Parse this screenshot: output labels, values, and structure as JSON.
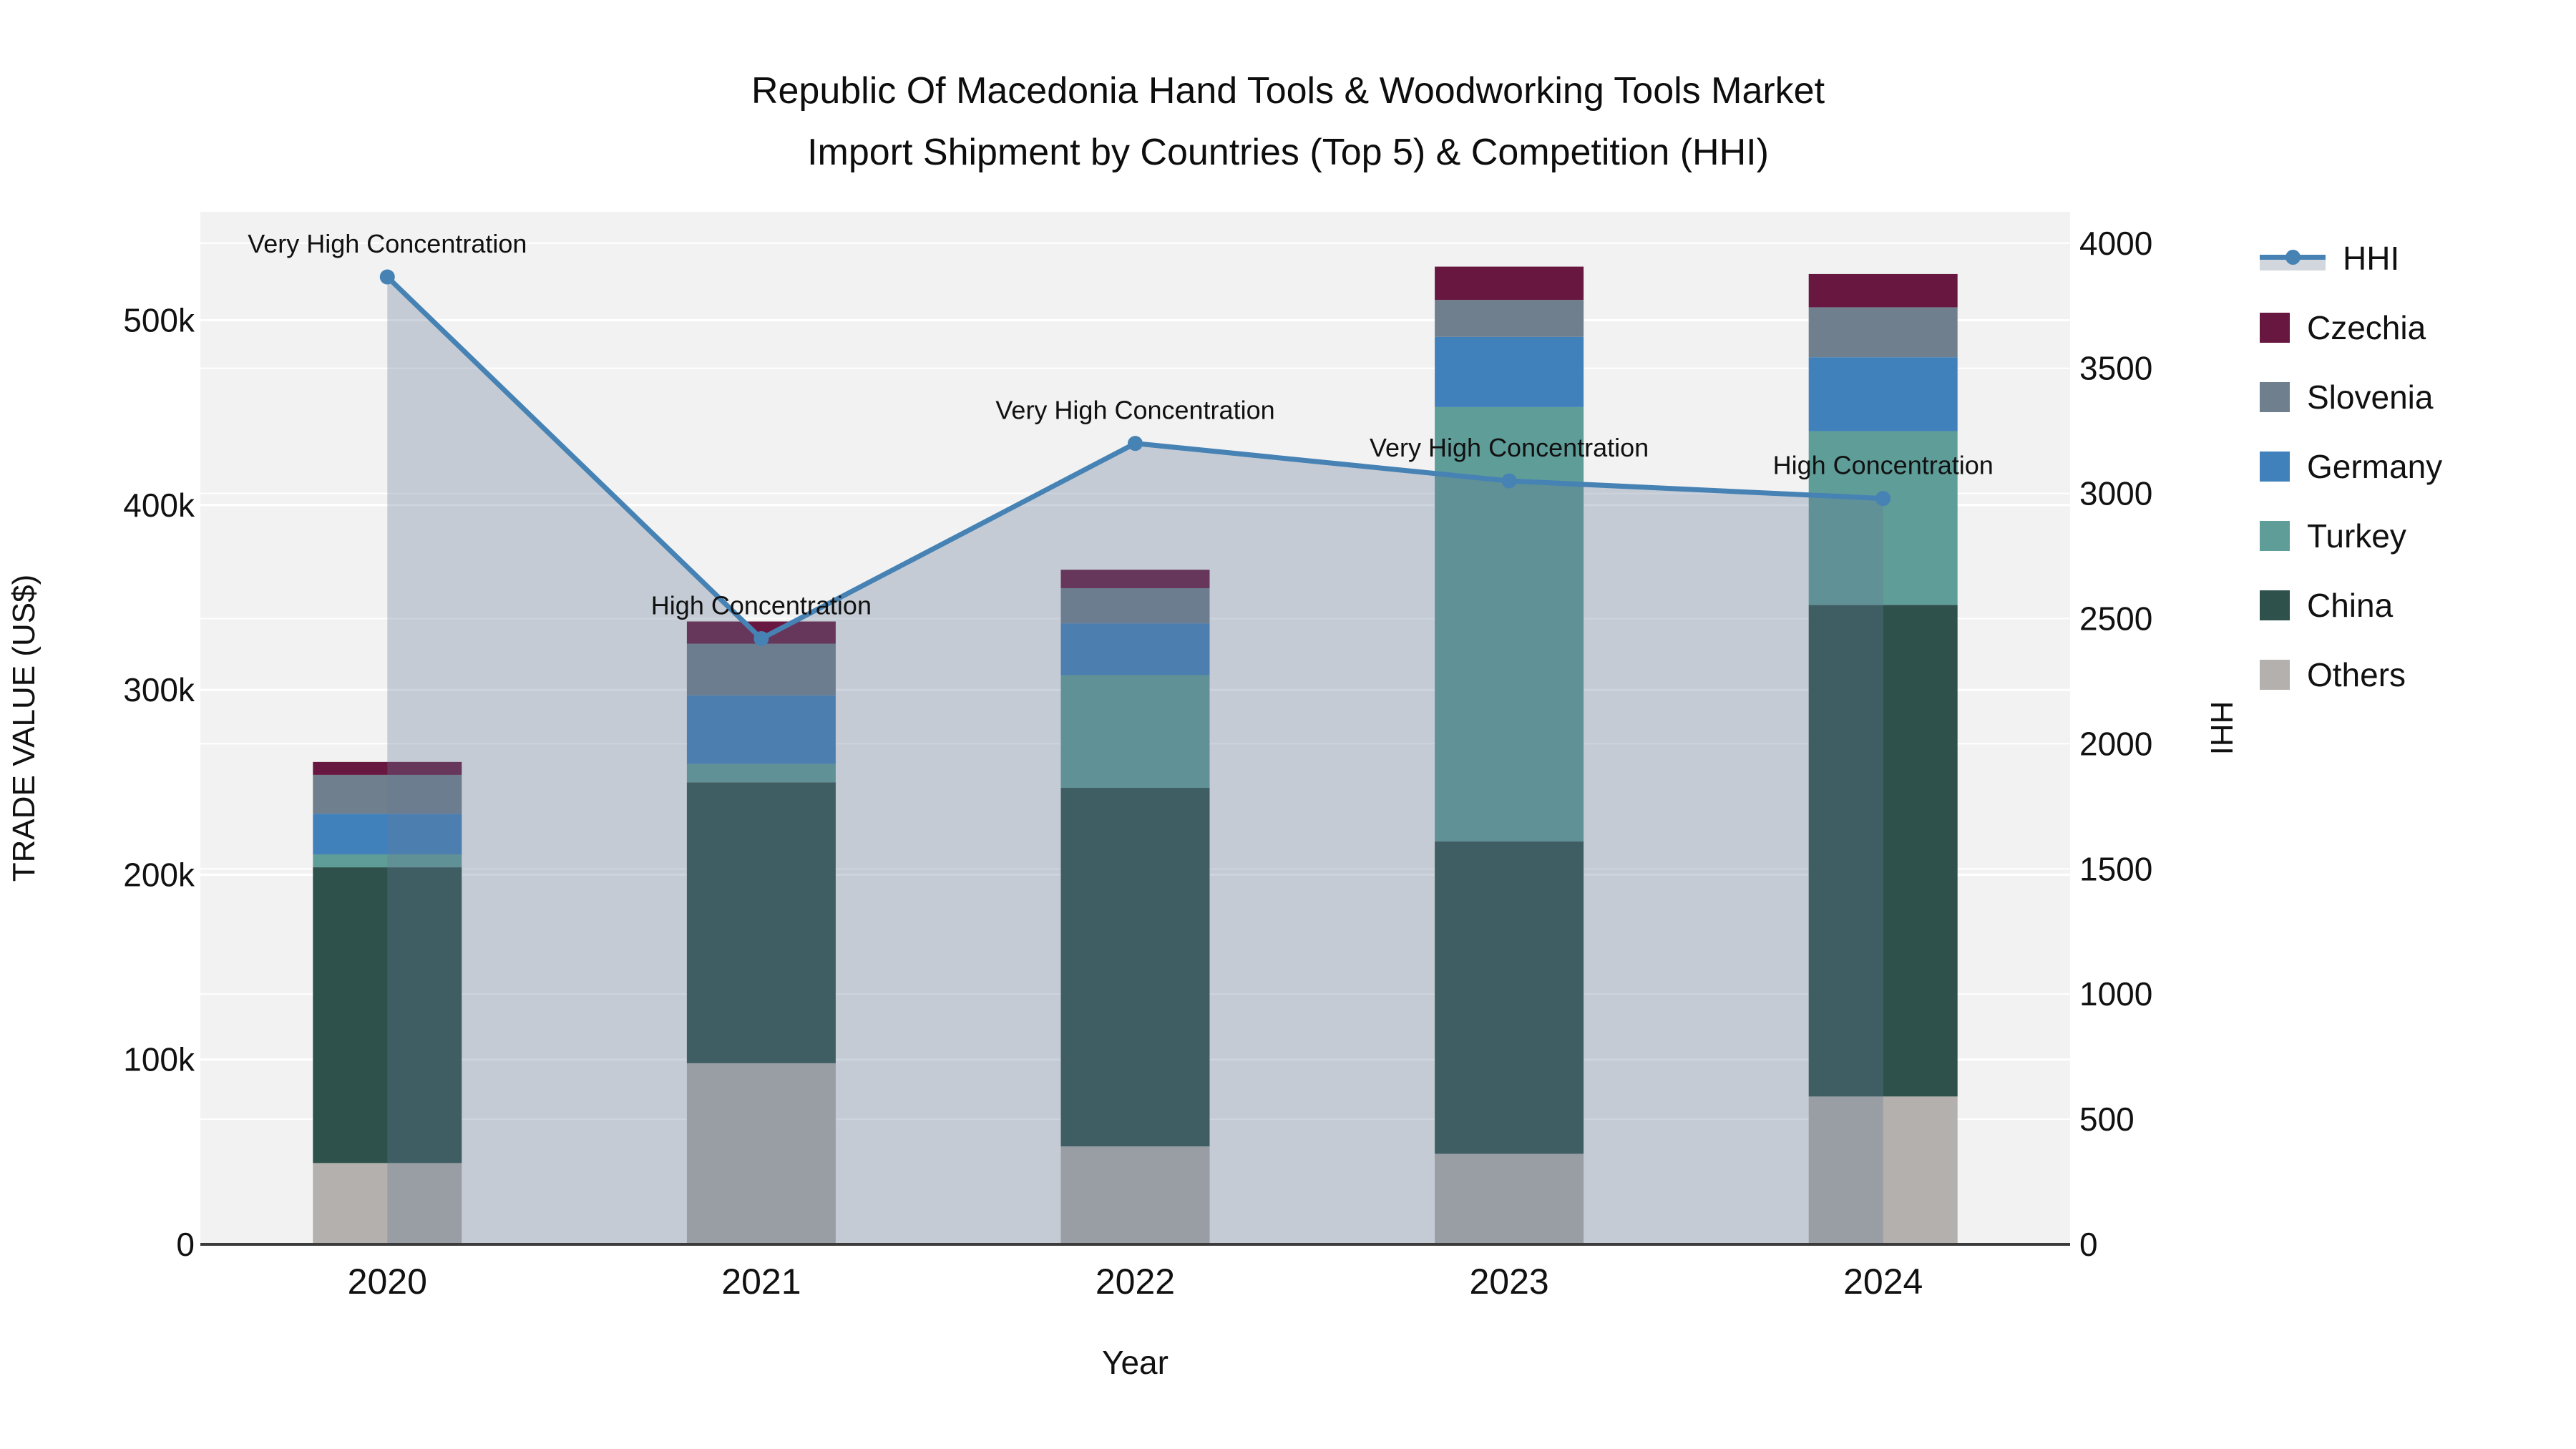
{
  "title": {
    "line1": "Republic Of Macedonia Hand Tools & Woodworking Tools Market",
    "line2": "Import Shipment by Countries (Top 5) & Competition (HHI)"
  },
  "axes": {
    "x": {
      "title": "Year",
      "categories": [
        "2020",
        "2021",
        "2022",
        "2023",
        "2024"
      ]
    },
    "y_left": {
      "title": "TRADE VALUE (US$)",
      "tick_labels": [
        "0",
        "100k",
        "200k",
        "300k",
        "400k",
        "500k"
      ],
      "tick_values": [
        0,
        100000,
        200000,
        300000,
        400000,
        500000
      ]
    },
    "y_right": {
      "title": "HHI",
      "tick_labels": [
        "0",
        "500",
        "1000",
        "1500",
        "2000",
        "2500",
        "3000",
        "3500",
        "4000"
      ],
      "tick_values": [
        0,
        500,
        1000,
        1500,
        2000,
        2500,
        3000,
        3500,
        4000
      ]
    }
  },
  "legend": {
    "items": [
      {
        "id": "hhi",
        "label": "HHI",
        "type": "line",
        "color": "#4682b4"
      },
      {
        "id": "czechia",
        "label": "Czechia",
        "type": "swatch",
        "color": "#681840"
      },
      {
        "id": "slovenia",
        "label": "Slovenia",
        "type": "swatch",
        "color": "#6f7f8d"
      },
      {
        "id": "germany",
        "label": "Germany",
        "type": "swatch",
        "color": "#4181bb"
      },
      {
        "id": "turkey",
        "label": "Turkey",
        "type": "swatch",
        "color": "#5f9d99"
      },
      {
        "id": "china",
        "label": "China",
        "type": "swatch",
        "color": "#2e514c"
      },
      {
        "id": "others",
        "label": "Others",
        "type": "swatch",
        "color": "#b3b0ad"
      }
    ]
  },
  "colors": {
    "hhi_line": "#4682b4",
    "hhi_area_fill": "rgba(100,120,150,0.32)",
    "plot_background": "#f2f2f2",
    "gridline": "#ffffff",
    "axis_line": "#3b3b3b",
    "text": "#111111"
  },
  "chart_data": {
    "type": "bar",
    "subtype": "stacked-bars-with-line-overlay",
    "title": "Republic Of Macedonia Hand Tools & Woodworking Tools Market Import Shipment by Countries (Top 5) & Competition (HHI)",
    "xlabel": "Year",
    "ylabel_left": "TRADE VALUE (US$)",
    "ylabel_right": "HHI",
    "categories": [
      "2020",
      "2021",
      "2022",
      "2023",
      "2024"
    ],
    "ylim_left": [
      0,
      558000
    ],
    "ylim_right": [
      0,
      4120
    ],
    "grid": "on",
    "legend_position": "right",
    "series": [
      {
        "name": "Others",
        "stack_position": 1,
        "color": "#b3b0ad",
        "values": [
          44000,
          98000,
          53000,
          49000,
          80000
        ]
      },
      {
        "name": "China",
        "stack_position": 2,
        "color": "#2e514c",
        "values": [
          160000,
          152000,
          194000,
          169000,
          266000
        ]
      },
      {
        "name": "Turkey",
        "stack_position": 3,
        "color": "#5f9d99",
        "values": [
          7000,
          10000,
          61000,
          235000,
          94000
        ]
      },
      {
        "name": "Germany",
        "stack_position": 4,
        "color": "#4181bb",
        "values": [
          22000,
          37000,
          28000,
          38000,
          40000
        ]
      },
      {
        "name": "Slovenia",
        "stack_position": 5,
        "color": "#6f7f8d",
        "values": [
          21000,
          28000,
          19000,
          20000,
          27000
        ]
      },
      {
        "name": "Czechia",
        "stack_position": 6,
        "color": "#681840",
        "values": [
          7000,
          12000,
          10000,
          18000,
          18000
        ]
      }
    ],
    "bar_totals": [
      261000,
      337000,
      365000,
      529000,
      525000
    ],
    "hhi": {
      "name": "HHI",
      "axis": "right",
      "type": "line+markers+area",
      "values": [
        3865,
        2420,
        3200,
        3050,
        2980
      ],
      "annotations": [
        "Very High Concentration",
        "High Concentration",
        "Very High Concentration",
        "Very High Concentration",
        "High Concentration"
      ]
    }
  }
}
